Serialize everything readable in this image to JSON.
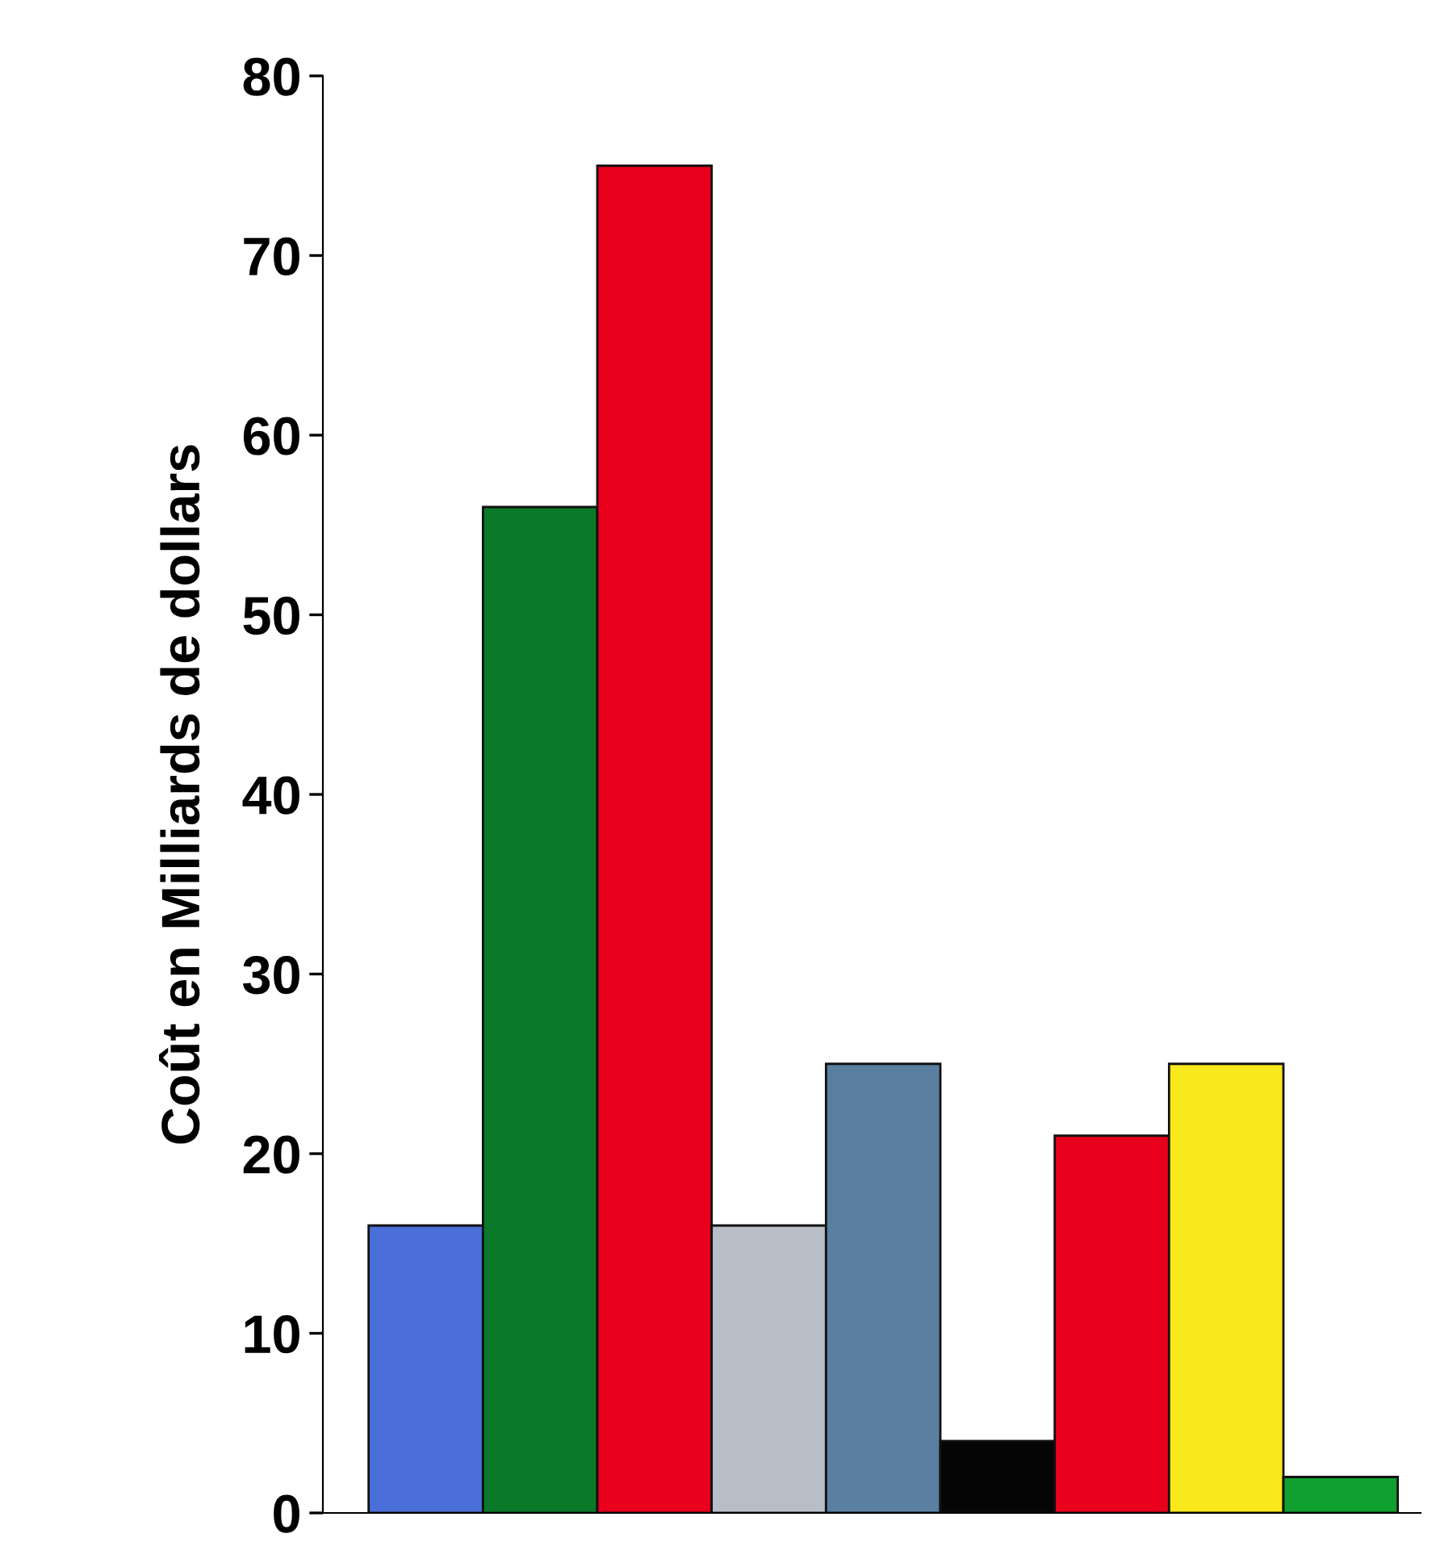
{
  "chart_data": {
    "type": "bar",
    "ylabel": "Coût en Milliards de dollars",
    "categories": [
      null,
      null,
      null,
      null,
      null,
      null,
      null,
      null,
      null
    ],
    "values": [
      16,
      56,
      75,
      16,
      25,
      4,
      21,
      25,
      2
    ],
    "colors": [
      "#4a6fd8",
      "#0a7a2a",
      "#e8001c",
      "#b8bec8",
      "#5a7fa0",
      "#050505",
      "#e8001c",
      "#f8e81c",
      "#10a030"
    ],
    "ylim": [
      0,
      80
    ],
    "yticks": [
      0,
      10,
      20,
      30,
      40,
      50,
      60,
      70,
      80
    ],
    "grid": false,
    "legend": false
  }
}
